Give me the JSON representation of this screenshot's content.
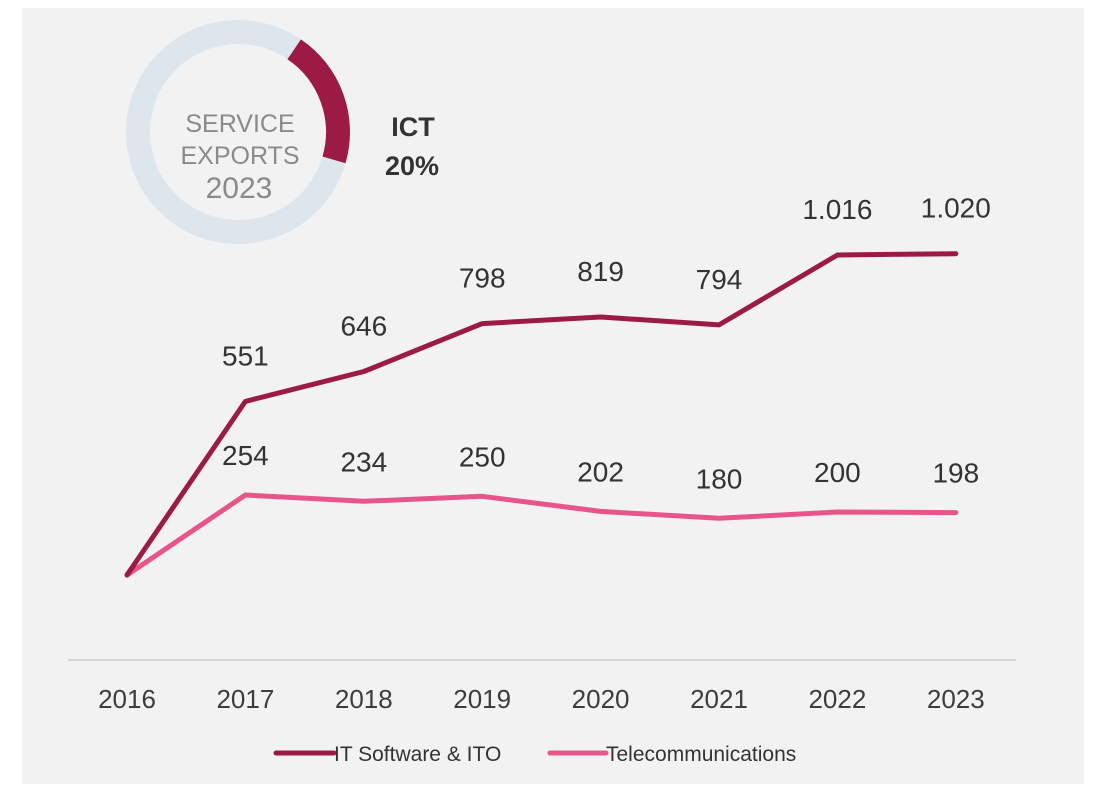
{
  "chart_data": {
    "type": "line",
    "x": [
      "2016",
      "2017",
      "2018",
      "2019",
      "2020",
      "2021",
      "2022",
      "2023"
    ],
    "series": [
      {
        "name": "IT Software & ITO",
        "color": "#9b1b45",
        "values": [
          0,
          551,
          646,
          798,
          819,
          794,
          1016,
          1020
        ],
        "labels": [
          "",
          "551",
          "646",
          "798",
          "819",
          "794",
          "1.016",
          "1.020"
        ]
      },
      {
        "name": "Telecommunications",
        "color": "#e8558a",
        "values": [
          0,
          254,
          234,
          250,
          202,
          180,
          200,
          198
        ],
        "labels": [
          "",
          "254",
          "234",
          "250",
          "202",
          "180",
          "200",
          "198"
        ]
      }
    ],
    "ylim": [
      -200,
      1200
    ],
    "grid": false,
    "legend": "bottom-center",
    "inset_donut": {
      "center_lines": [
        "SERVICE",
        "EXPORTS",
        "2023"
      ],
      "highlight_label": "ICT",
      "highlight_value_label": "20%",
      "highlight_fraction": 0.2,
      "highlight_color": "#9b1b45",
      "ring_color": "#dde6ed"
    }
  }
}
